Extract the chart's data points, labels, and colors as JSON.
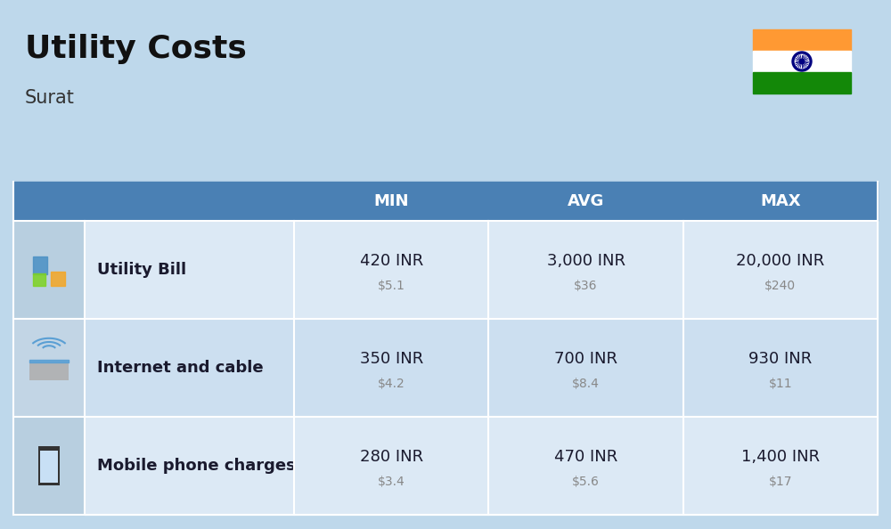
{
  "title": "Utility Costs",
  "subtitle": "Surat",
  "background_color": "#bed8eb",
  "header_color": "#4a80b4",
  "header_text_color": "#ffffff",
  "row_colors_odd": "#dce9f5",
  "row_colors_even": "#ccdff0",
  "icon_col_color_odd": "#b8cfe0",
  "icon_col_color_even": "#c2d5e5",
  "text_color": "#1a1a2e",
  "usd_color": "#888888",
  "columns": [
    "MIN",
    "AVG",
    "MAX"
  ],
  "rows": [
    {
      "label": "Utility Bill",
      "min_inr": "420 INR",
      "min_usd": "$5.1",
      "avg_inr": "3,000 INR",
      "avg_usd": "$36",
      "max_inr": "20,000 INR",
      "max_usd": "$240"
    },
    {
      "label": "Internet and cable",
      "min_inr": "350 INR",
      "min_usd": "$4.2",
      "avg_inr": "700 INR",
      "avg_usd": "$8.4",
      "max_inr": "930 INR",
      "max_usd": "$11"
    },
    {
      "label": "Mobile phone charges",
      "min_inr": "280 INR",
      "min_usd": "$3.4",
      "avg_inr": "470 INR",
      "avg_usd": "$5.6",
      "max_inr": "1,400 INR",
      "max_usd": "$17"
    }
  ],
  "flag_orange": "#ff9933",
  "flag_white": "#ffffff",
  "flag_green": "#138808",
  "flag_chakra": "#000080",
  "title_fontsize": 26,
  "subtitle_fontsize": 15,
  "header_fontsize": 13,
  "label_fontsize": 13,
  "inr_fontsize": 13,
  "usd_fontsize": 10
}
